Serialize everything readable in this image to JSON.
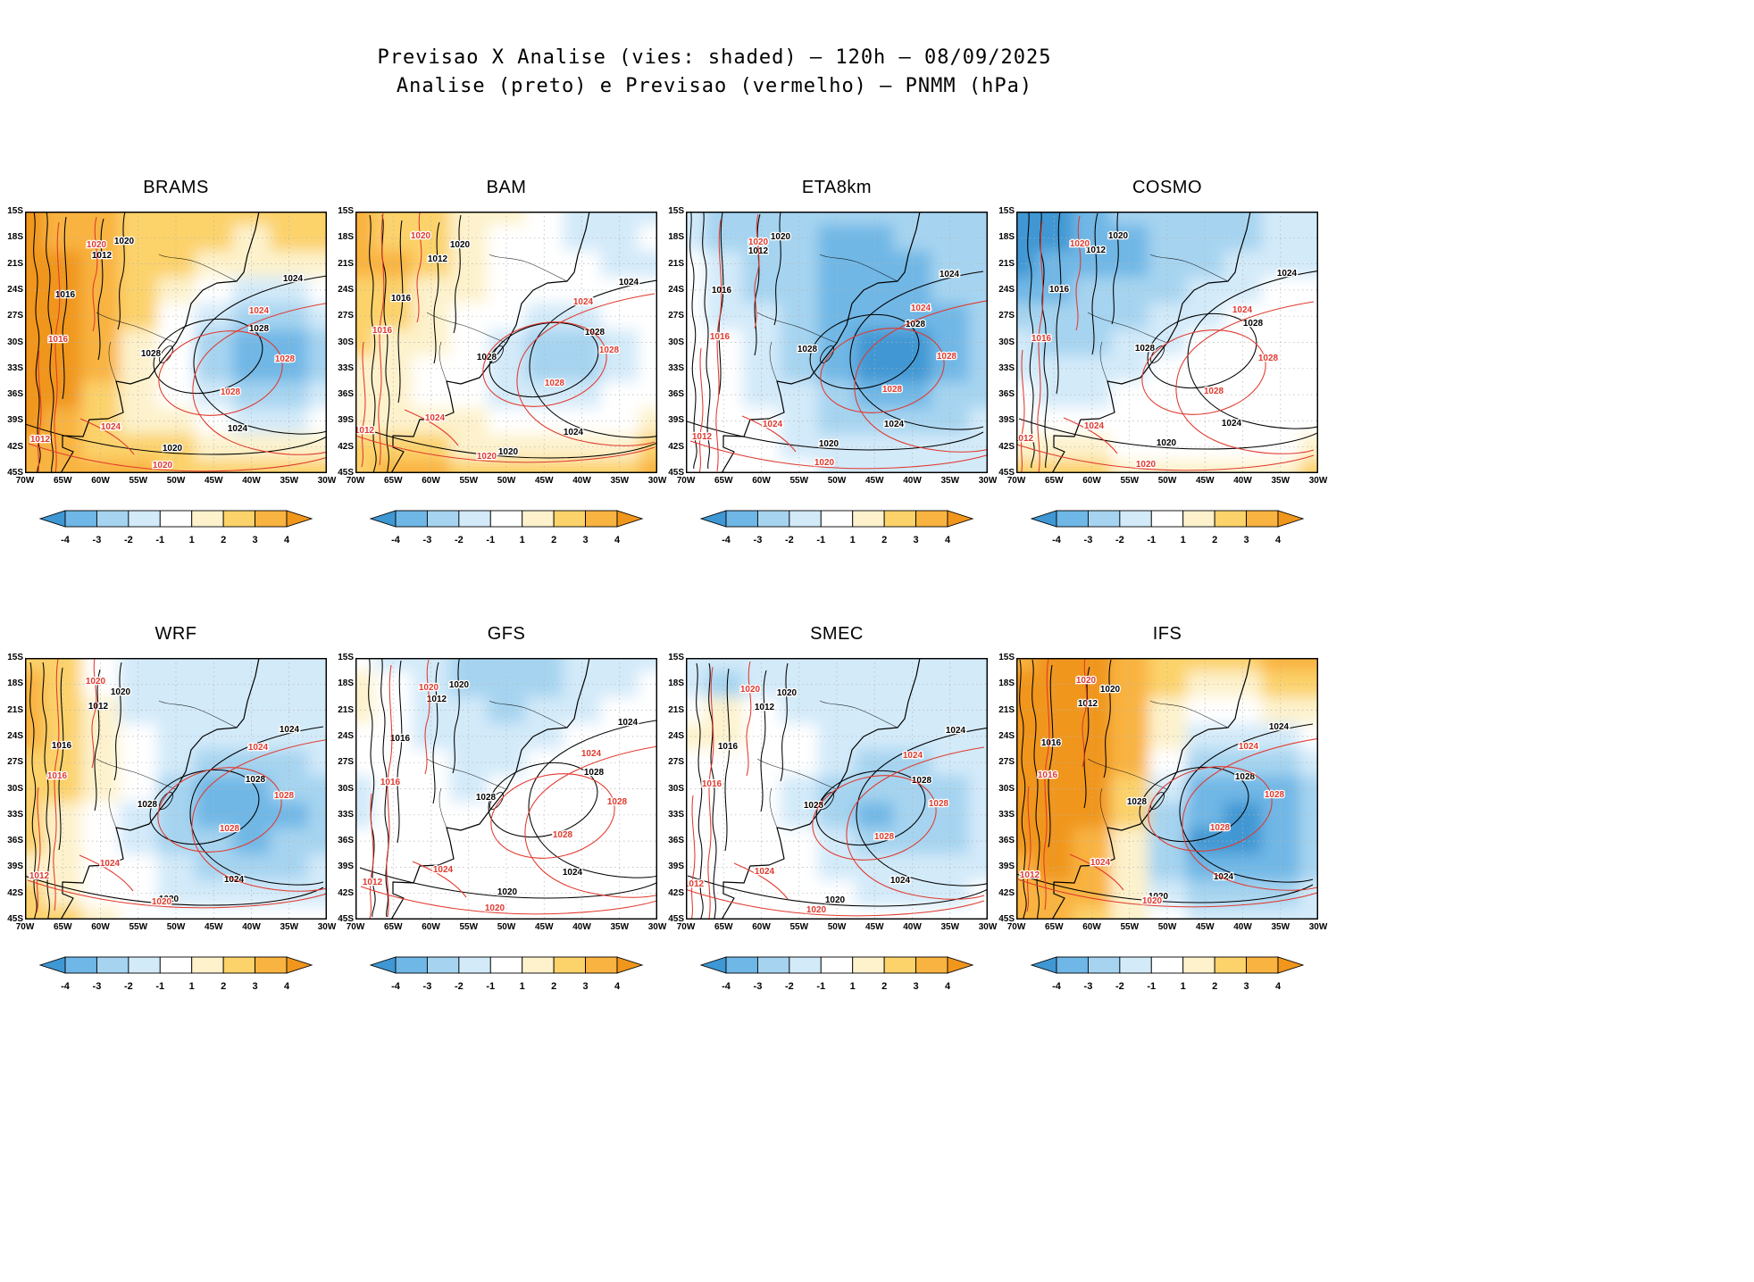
{
  "header": {
    "title": "Previsao X Analise (vies: shaded) — 120h — 08/09/2025",
    "subtitle": "Analise (preto) e Previsao (vermelho) — PNMM (hPa)"
  },
  "axes": {
    "lat": [
      "15S",
      "18S",
      "21S",
      "24S",
      "27S",
      "30S",
      "33S",
      "36S",
      "39S",
      "42S",
      "45S"
    ],
    "lon": [
      "70W",
      "65W",
      "60W",
      "55W",
      "50W",
      "45W",
      "40W",
      "35W",
      "30W"
    ]
  },
  "colorbar": {
    "ticks": [
      "-4",
      "-3",
      "-2",
      "-1",
      "1",
      "2",
      "3",
      "4"
    ],
    "segment_colors": [
      "#3f97d3",
      "#6fb7e6",
      "#a6d4f0",
      "#d3eaf9",
      "#ffffff",
      "#fdf2cc",
      "#fcd26a",
      "#f9b340",
      "#f0961c"
    ],
    "value_colors": {
      "-4": "#3f97d3",
      "-3": "#6fb7e6",
      "-2": "#a6d4f0",
      "-1": "#d3eaf9",
      "0": "#ffffff",
      "1": "#fdf2cc",
      "2": "#fcd26a",
      "3": "#f9b340",
      "4": "#f0961c"
    }
  },
  "contours": {
    "black_color": "#000000",
    "red_color": "#e0392e",
    "levels": [
      "1012",
      "1016",
      "1020",
      "1024",
      "1028"
    ]
  },
  "chart_data": {
    "type": "heatmap",
    "title": "Previsao X Analise (vies: shaded) — 120h — 08/09/2025",
    "subtitle": "Analise (preto) e Previsao (vermelho) — PNMM (hPa)",
    "variable": "PNMM (hPa)",
    "lead_time": "120h",
    "date": "08/09/2025",
    "lon_range": [
      -70,
      -30
    ],
    "lat_range": [
      -45,
      -15
    ],
    "x_lon": [
      -70,
      -65,
      -60,
      -55,
      -50,
      -45,
      -40,
      -35,
      -30
    ],
    "y_lat": [
      -15,
      -18,
      -21,
      -24,
      -27,
      -30,
      -33,
      -36,
      -39,
      -42,
      -45
    ],
    "shade_levels": [
      -4,
      -3,
      -2,
      -1,
      1,
      2,
      3,
      4
    ],
    "contour_levels_black_hpa": [
      1012,
      1016,
      1020,
      1024,
      1028
    ],
    "contour_levels_red_hpa": [
      1012,
      1016,
      1020,
      1024,
      1028
    ],
    "grid": "dotted",
    "legend_position": "below-each-panel",
    "panels": [
      {
        "name": "BRAMS",
        "bias_grid": [
          [
            4,
            3,
            3,
            2,
            2,
            2,
            2,
            2,
            2
          ],
          [
            4,
            3,
            3,
            2,
            2,
            2,
            1,
            2,
            2
          ],
          [
            4,
            4,
            3,
            2,
            2,
            1,
            1,
            1,
            1
          ],
          [
            4,
            4,
            3,
            2,
            1,
            0,
            -1,
            -1,
            0
          ],
          [
            4,
            4,
            3,
            2,
            0,
            -1,
            -2,
            -2,
            -1
          ],
          [
            4,
            4,
            3,
            1,
            0,
            -2,
            -3,
            -3,
            -2
          ],
          [
            4,
            4,
            3,
            1,
            0,
            -2,
            -3,
            -3,
            -2
          ],
          [
            4,
            4,
            2,
            1,
            0,
            -1,
            -2,
            -2,
            -1
          ],
          [
            4,
            3,
            2,
            1,
            1,
            0,
            -1,
            -1,
            0
          ],
          [
            3,
            3,
            2,
            2,
            2,
            1,
            1,
            1,
            1
          ],
          [
            3,
            3,
            3,
            3,
            2,
            2,
            2,
            2,
            2
          ]
        ]
      },
      {
        "name": "BAM",
        "bias_grid": [
          [
            3,
            2,
            2,
            1,
            1,
            0,
            -1,
            -1,
            -1
          ],
          [
            3,
            2,
            2,
            1,
            0,
            0,
            -1,
            -1,
            0
          ],
          [
            3,
            3,
            2,
            1,
            0,
            0,
            0,
            -1,
            -1
          ],
          [
            2,
            2,
            1,
            1,
            0,
            0,
            0,
            0,
            0
          ],
          [
            2,
            2,
            1,
            0,
            0,
            -1,
            -1,
            0,
            0
          ],
          [
            2,
            1,
            1,
            0,
            -1,
            -2,
            -2,
            -1,
            0
          ],
          [
            1,
            1,
            0,
            0,
            -1,
            -2,
            -2,
            -1,
            0
          ],
          [
            1,
            1,
            0,
            0,
            -1,
            -1,
            -1,
            0,
            0
          ],
          [
            1,
            1,
            1,
            1,
            0,
            0,
            0,
            0,
            1
          ],
          [
            2,
            2,
            2,
            1,
            1,
            1,
            1,
            1,
            2
          ],
          [
            2,
            3,
            3,
            2,
            2,
            2,
            2,
            2,
            3
          ]
        ]
      },
      {
        "name": "ETA8km",
        "bias_grid": [
          [
            -1,
            -2,
            -2,
            -2,
            -2,
            -2,
            -2,
            -2,
            -2
          ],
          [
            -1,
            -2,
            -2,
            -2,
            -3,
            -3,
            -2,
            -2,
            -2
          ],
          [
            0,
            -1,
            -2,
            -2,
            -3,
            -3,
            -3,
            -2,
            -2
          ],
          [
            0,
            -1,
            -2,
            -2,
            -3,
            -3,
            -3,
            -2,
            -2
          ],
          [
            0,
            -1,
            -1,
            -2,
            -3,
            -3,
            -3,
            -3,
            -2
          ],
          [
            0,
            0,
            -1,
            -2,
            -3,
            -4,
            -4,
            -3,
            -2
          ],
          [
            0,
            0,
            -1,
            -2,
            -3,
            -4,
            -4,
            -3,
            -2
          ],
          [
            0,
            0,
            -1,
            -1,
            -2,
            -3,
            -3,
            -2,
            -2
          ],
          [
            0,
            0,
            0,
            -1,
            -2,
            -2,
            -2,
            -2,
            -1
          ],
          [
            0,
            0,
            0,
            -1,
            -1,
            -1,
            -1,
            -1,
            -1
          ],
          [
            0,
            0,
            0,
            0,
            -1,
            -1,
            -1,
            -1,
            -1
          ]
        ]
      },
      {
        "name": "COSMO",
        "bias_grid": [
          [
            -4,
            -4,
            -3,
            -2,
            -2,
            -2,
            -2,
            -1,
            -1
          ],
          [
            -4,
            -4,
            -3,
            -3,
            -2,
            -2,
            -2,
            -1,
            -1
          ],
          [
            -4,
            -3,
            -3,
            -3,
            -2,
            -2,
            -1,
            -1,
            -1
          ],
          [
            -3,
            -3,
            -2,
            -2,
            -2,
            -1,
            -1,
            0,
            0
          ],
          [
            -2,
            -2,
            -2,
            -2,
            -1,
            -1,
            0,
            0,
            0
          ],
          [
            -1,
            -2,
            -2,
            -1,
            -1,
            0,
            0,
            0,
            0
          ],
          [
            -1,
            -1,
            -1,
            -1,
            0,
            0,
            0,
            0,
            0
          ],
          [
            0,
            -1,
            -1,
            0,
            0,
            0,
            0,
            0,
            0
          ],
          [
            0,
            0,
            0,
            0,
            0,
            0,
            0,
            0,
            0
          ],
          [
            1,
            1,
            1,
            0,
            0,
            0,
            0,
            0,
            1
          ],
          [
            2,
            2,
            2,
            1,
            1,
            1,
            1,
            1,
            2
          ]
        ]
      },
      {
        "name": "WRF",
        "bias_grid": [
          [
            2,
            2,
            0,
            -1,
            -1,
            -1,
            -1,
            -1,
            -1
          ],
          [
            3,
            2,
            0,
            -1,
            -1,
            -1,
            -1,
            -1,
            -1
          ],
          [
            3,
            2,
            1,
            -1,
            -1,
            -1,
            -1,
            -1,
            -1
          ],
          [
            3,
            2,
            1,
            0,
            -1,
            -1,
            -1,
            -1,
            -1
          ],
          [
            2,
            2,
            1,
            0,
            -1,
            -2,
            -2,
            -2,
            -1
          ],
          [
            2,
            2,
            1,
            0,
            -2,
            -3,
            -3,
            -2,
            -2
          ],
          [
            2,
            1,
            0,
            -1,
            -2,
            -3,
            -3,
            -3,
            -2
          ],
          [
            2,
            1,
            0,
            -1,
            -2,
            -2,
            -3,
            -2,
            -2
          ],
          [
            1,
            1,
            0,
            0,
            -1,
            -2,
            -2,
            -2,
            -1
          ],
          [
            2,
            1,
            0,
            0,
            -1,
            -1,
            -1,
            -1,
            -1
          ],
          [
            2,
            2,
            1,
            0,
            0,
            0,
            0,
            0,
            0
          ]
        ]
      },
      {
        "name": "GFS",
        "bias_grid": [
          [
            0,
            -1,
            -1,
            -2,
            -2,
            -2,
            -1,
            -1,
            -1
          ],
          [
            1,
            0,
            -1,
            -2,
            -2,
            -2,
            -1,
            -1,
            0
          ],
          [
            1,
            0,
            -1,
            -1,
            -2,
            -1,
            -1,
            0,
            0
          ],
          [
            0,
            0,
            -1,
            -1,
            -1,
            -1,
            0,
            0,
            0
          ],
          [
            0,
            0,
            0,
            -1,
            -1,
            0,
            0,
            0,
            0
          ],
          [
            -1,
            0,
            0,
            -1,
            0,
            0,
            0,
            0,
            0
          ],
          [
            -1,
            0,
            0,
            0,
            0,
            0,
            0,
            0,
            0
          ],
          [
            0,
            0,
            0,
            0,
            0,
            0,
            0,
            0,
            0
          ],
          [
            0,
            0,
            0,
            0,
            0,
            0,
            0,
            0,
            0
          ],
          [
            0,
            0,
            0,
            0,
            0,
            0,
            0,
            0,
            0
          ],
          [
            0,
            0,
            0,
            0,
            0,
            0,
            0,
            0,
            0
          ]
        ]
      },
      {
        "name": "SMEC",
        "bias_grid": [
          [
            -1,
            -1,
            -1,
            -1,
            -1,
            -1,
            -1,
            -1,
            -1
          ],
          [
            -1,
            -2,
            -1,
            -1,
            -1,
            -1,
            -1,
            -1,
            -1
          ],
          [
            0,
            1,
            0,
            -1,
            -1,
            -1,
            -1,
            -1,
            -1
          ],
          [
            1,
            1,
            0,
            0,
            -1,
            -1,
            -1,
            -1,
            -1
          ],
          [
            0,
            0,
            0,
            0,
            -1,
            -2,
            -2,
            -1,
            -1
          ],
          [
            0,
            0,
            0,
            -1,
            -2,
            -2,
            -2,
            -2,
            -1
          ],
          [
            0,
            0,
            0,
            -1,
            -2,
            -3,
            -2,
            -2,
            -1
          ],
          [
            0,
            0,
            0,
            0,
            -1,
            -2,
            -2,
            -2,
            -1
          ],
          [
            0,
            0,
            0,
            0,
            -1,
            -1,
            -1,
            -1,
            -1
          ],
          [
            0,
            0,
            0,
            0,
            0,
            -1,
            -1,
            -1,
            0
          ],
          [
            0,
            0,
            0,
            0,
            0,
            0,
            0,
            0,
            0
          ]
        ]
      },
      {
        "name": "IFS",
        "bias_grid": [
          [
            3,
            4,
            4,
            3,
            2,
            2,
            2,
            3,
            3
          ],
          [
            4,
            4,
            4,
            3,
            2,
            1,
            1,
            2,
            2
          ],
          [
            4,
            4,
            4,
            3,
            1,
            0,
            0,
            1,
            1
          ],
          [
            4,
            4,
            4,
            3,
            1,
            -1,
            -1,
            -1,
            0
          ],
          [
            4,
            4,
            4,
            3,
            0,
            -2,
            -2,
            -2,
            -1
          ],
          [
            4,
            4,
            4,
            2,
            -1,
            -3,
            -3,
            -3,
            -2
          ],
          [
            4,
            4,
            4,
            2,
            -2,
            -3,
            -4,
            -3,
            -2
          ],
          [
            4,
            4,
            3,
            1,
            -2,
            -4,
            -4,
            -3,
            -2
          ],
          [
            3,
            4,
            3,
            1,
            -2,
            -3,
            -3,
            -3,
            -2
          ],
          [
            3,
            3,
            3,
            1,
            -1,
            -2,
            -2,
            -2,
            -1
          ],
          [
            3,
            3,
            2,
            1,
            0,
            -1,
            -1,
            -1,
            -1
          ]
        ]
      }
    ]
  }
}
